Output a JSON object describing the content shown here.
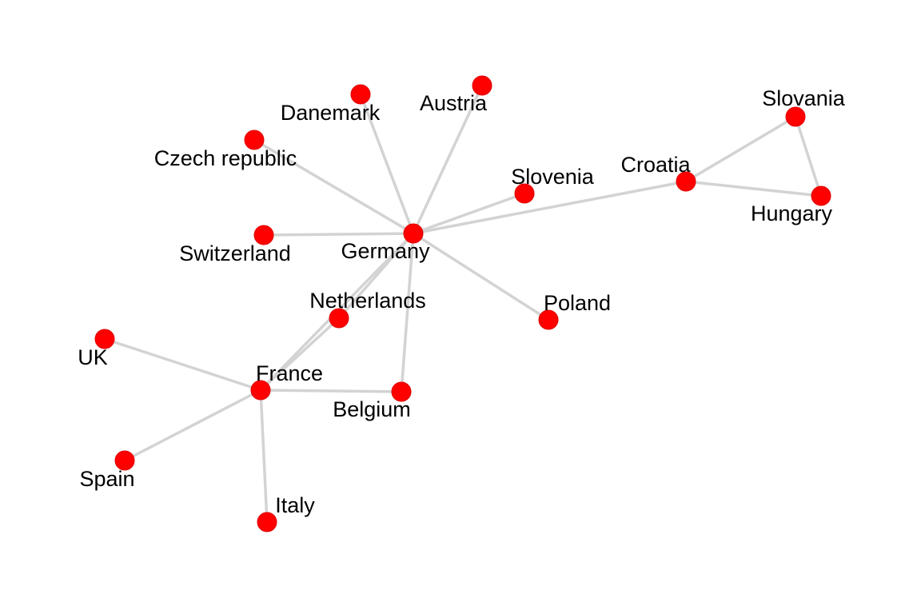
{
  "graph": {
    "nodes": [
      {
        "id": "germany",
        "label": "Germany"
      },
      {
        "id": "france",
        "label": "France"
      },
      {
        "id": "netherlands",
        "label": "Netherlands"
      },
      {
        "id": "belgium",
        "label": "Belgium"
      },
      {
        "id": "switzerland",
        "label": "Switzerland"
      },
      {
        "id": "czech",
        "label": "Czech republic"
      },
      {
        "id": "danemark",
        "label": "Danemark"
      },
      {
        "id": "austria",
        "label": "Austria"
      },
      {
        "id": "slovenia",
        "label": "Slovenia"
      },
      {
        "id": "croatia",
        "label": "Croatia"
      },
      {
        "id": "slovania",
        "label": "Slovania"
      },
      {
        "id": "hungary",
        "label": "Hungary"
      },
      {
        "id": "poland",
        "label": "Poland"
      },
      {
        "id": "uk",
        "label": "UK"
      },
      {
        "id": "spain",
        "label": "Spain"
      },
      {
        "id": "italy",
        "label": "Italy"
      }
    ],
    "edges": [
      [
        "germany",
        "danemark"
      ],
      [
        "germany",
        "austria"
      ],
      [
        "germany",
        "czech"
      ],
      [
        "germany",
        "switzerland"
      ],
      [
        "germany",
        "slovenia"
      ],
      [
        "germany",
        "croatia"
      ],
      [
        "germany",
        "poland"
      ],
      [
        "germany",
        "netherlands"
      ],
      [
        "germany",
        "france"
      ],
      [
        "germany",
        "belgium"
      ],
      [
        "croatia",
        "slovania"
      ],
      [
        "croatia",
        "hungary"
      ],
      [
        "slovania",
        "hungary"
      ],
      [
        "netherlands",
        "france"
      ],
      [
        "france",
        "belgium"
      ],
      [
        "france",
        "uk"
      ],
      [
        "france",
        "spain"
      ],
      [
        "france",
        "italy"
      ]
    ],
    "node_color": "#ff0000",
    "edge_color": "#d3d3d3"
  }
}
